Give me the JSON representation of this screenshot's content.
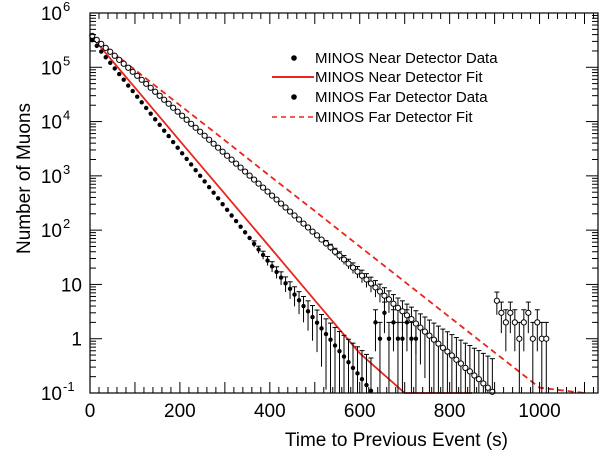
{
  "chart_data": {
    "type": "scatter",
    "xlabel": "Time to Previous Event (s)",
    "ylabel": "Number of Muons",
    "xlim": [
      0,
      1130
    ],
    "ylim": [
      0.1,
      1000000
    ],
    "y_scale": "log",
    "x_ticks": [
      0,
      200,
      400,
      600,
      800,
      1000
    ],
    "y_ticks": [
      {
        "value": 0.1,
        "base": "10",
        "exp": "-1"
      },
      {
        "value": 1,
        "base": "1",
        "exp": ""
      },
      {
        "value": 10,
        "base": "10",
        "exp": ""
      },
      {
        "value": 100,
        "base": "10",
        "exp": "2"
      },
      {
        "value": 1000,
        "base": "10",
        "exp": "3"
      },
      {
        "value": 10000,
        "base": "10",
        "exp": "4"
      },
      {
        "value": 100000,
        "base": "10",
        "exp": "5"
      },
      {
        "value": 1000000,
        "base": "10",
        "exp": "6"
      }
    ],
    "legend_position": "top-right",
    "series": [
      {
        "name": "MINOS Near Detector Data",
        "kind": "points",
        "marker": "filled",
        "color": "#000000",
        "x": [
          5,
          15,
          25,
          35,
          45,
          55,
          65,
          75,
          85,
          95,
          105,
          115,
          125,
          135,
          145,
          155,
          165,
          175,
          185,
          195,
          205,
          215,
          225,
          235,
          245,
          255,
          265,
          275,
          285,
          295,
          305,
          315,
          325,
          335,
          345,
          355,
          365,
          375,
          385,
          395,
          405,
          415,
          425,
          435,
          445,
          455,
          465,
          475,
          485,
          495,
          505,
          515,
          525,
          535,
          545,
          555,
          565,
          575,
          585,
          595,
          605,
          615,
          625,
          635,
          645,
          655,
          665,
          675,
          685,
          695,
          705,
          715,
          725
        ],
        "y": [
          316000,
          248000,
          195000,
          153000,
          121000,
          95000,
          75000,
          59000,
          46000,
          36500,
          28700,
          22600,
          17800,
          14000,
          11000,
          8700,
          6800,
          5400,
          4200,
          3300,
          2600,
          2050,
          1620,
          1270,
          1000,
          790,
          620,
          490,
          385,
          300,
          237,
          186,
          147,
          116,
          91,
          72,
          56,
          44,
          35,
          27.5,
          21.6,
          17,
          13.4,
          10.5,
          8.3,
          6.5,
          5.1,
          4,
          3.2,
          2.5,
          1.97,
          1.55,
          1.22,
          0.96,
          0.75,
          0.59,
          0.47,
          0.37,
          0.29,
          0.23,
          0.18,
          0.14,
          0.11,
          2,
          1,
          3,
          1,
          2,
          1,
          1,
          2,
          1,
          1
        ]
      },
      {
        "name": "MINOS Near Detector Fit",
        "kind": "line",
        "style": "solid",
        "color": "#e8261f",
        "x": [
          0,
          100,
          200,
          300,
          400,
          500,
          600,
          700,
          770,
          850
        ],
        "y": [
          400000,
          42000,
          4400,
          465,
          49,
          5.1,
          0.54,
          0.057,
          0.1,
          0.1
        ]
      },
      {
        "name": "MINOS Far Detector Data",
        "kind": "points",
        "marker": "open",
        "color": "#000000",
        "x": [
          5,
          15,
          25,
          35,
          45,
          55,
          65,
          75,
          85,
          95,
          105,
          115,
          125,
          135,
          145,
          155,
          165,
          175,
          185,
          195,
          205,
          215,
          225,
          235,
          245,
          255,
          265,
          275,
          285,
          295,
          305,
          315,
          325,
          335,
          345,
          355,
          365,
          375,
          385,
          395,
          405,
          415,
          425,
          435,
          445,
          455,
          465,
          475,
          485,
          495,
          505,
          515,
          525,
          535,
          545,
          555,
          565,
          575,
          585,
          595,
          605,
          615,
          625,
          635,
          645,
          655,
          665,
          675,
          685,
          695,
          705,
          715,
          725,
          735,
          745,
          755,
          765,
          775,
          785,
          795,
          805,
          815,
          825,
          835,
          845,
          855,
          865,
          875,
          885,
          895,
          905,
          915,
          925,
          935,
          945,
          955,
          965,
          975,
          985,
          995,
          1005,
          1015
        ],
        "y": [
          380000,
          320000,
          270000,
          228000,
          193000,
          163000,
          137000,
          116000,
          98000,
          82500,
          69700,
          58800,
          49600,
          41900,
          35400,
          29900,
          25200,
          21300,
          18000,
          15200,
          12800,
          10800,
          9100,
          7700,
          6500,
          5490,
          4630,
          3910,
          3300,
          2790,
          2350,
          1990,
          1680,
          1420,
          1200,
          1010,
          853,
          720,
          608,
          513,
          433,
          366,
          309,
          261,
          220,
          186,
          157,
          132,
          112,
          94,
          80,
          67,
          57,
          48,
          40,
          34,
          28.7,
          24.2,
          20.4,
          17.2,
          14.5,
          12.3,
          10.4,
          8.8,
          7.4,
          6.2,
          5.3,
          4.4,
          3.7,
          3.2,
          2.7,
          2.3,
          1.9,
          1.6,
          1.35,
          1.14,
          0.96,
          0.81,
          0.68,
          0.58,
          0.49,
          0.41,
          0.35,
          0.29,
          0.25,
          0.21,
          0.18,
          0.15,
          0.125,
          0.105,
          5,
          3,
          2,
          3,
          2,
          1,
          2,
          3,
          1,
          2,
          1,
          1
        ]
      },
      {
        "name": "MINOS Far Detector Fit",
        "kind": "line",
        "style": "dashed",
        "color": "#e8261f",
        "x": [
          0,
          100,
          200,
          300,
          400,
          500,
          600,
          700,
          800,
          900,
          1000,
          1100
        ],
        "y": [
          400000,
          90000,
          20000,
          4500,
          1000,
          225,
          50,
          11.2,
          2.5,
          0.56,
          0.125,
          0.1
        ]
      }
    ]
  }
}
